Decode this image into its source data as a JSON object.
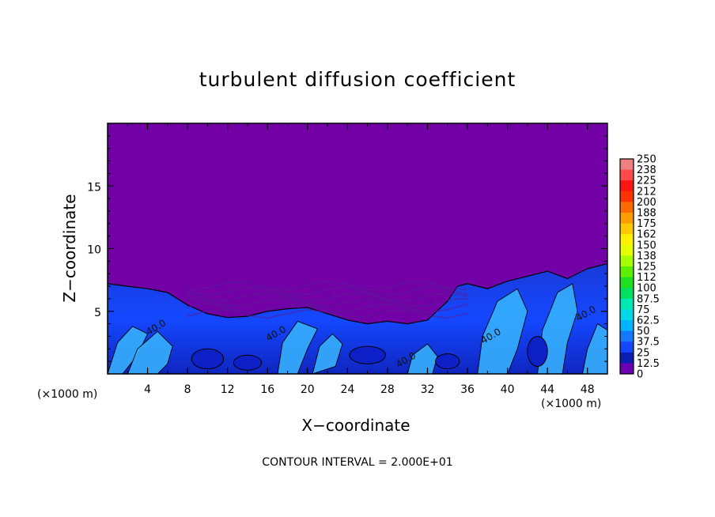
{
  "chart_data": {
    "type": "heatmap",
    "title": "turbulent diffusion coefficient",
    "xlabel": "X−coordinate",
    "ylabel": "Z−coordinate",
    "x_unit_label": "(×1000 m)",
    "x_ticks": [
      4,
      8,
      12,
      16,
      20,
      24,
      28,
      32,
      36,
      40,
      44,
      48
    ],
    "y_ticks": [
      5,
      10,
      15
    ],
    "xlim": [
      0,
      50
    ],
    "ylim": [
      0,
      20
    ],
    "footer": "CONTOUR INTERVAL = 2.000E+01",
    "contour_labels": [
      {
        "text": "40.0",
        "x": 5,
        "y": 3.5
      },
      {
        "text": "40.0",
        "x": 17,
        "y": 3.0
      },
      {
        "text": "40.0",
        "x": 30,
        "y": 0.9
      },
      {
        "text": "40.0",
        "x": 38.5,
        "y": 2.8
      },
      {
        "text": "40.0",
        "x": 48,
        "y": 4.6
      }
    ],
    "boundary_layer_top": [
      [
        0,
        7.2
      ],
      [
        2,
        7.0
      ],
      [
        4,
        6.8
      ],
      [
        6,
        6.5
      ],
      [
        8,
        5.5
      ],
      [
        10,
        4.8
      ],
      [
        12,
        4.5
      ],
      [
        14,
        4.6
      ],
      [
        16,
        5.0
      ],
      [
        18,
        5.2
      ],
      [
        20,
        5.3
      ],
      [
        22,
        4.8
      ],
      [
        24,
        4.3
      ],
      [
        26,
        4.0
      ],
      [
        28,
        4.2
      ],
      [
        30,
        4.0
      ],
      [
        32,
        4.3
      ],
      [
        34,
        5.8
      ],
      [
        35,
        7.0
      ],
      [
        36,
        7.2
      ],
      [
        38,
        6.8
      ],
      [
        40,
        7.4
      ],
      [
        42,
        7.8
      ],
      [
        44,
        8.2
      ],
      [
        46,
        7.6
      ],
      [
        48,
        8.4
      ],
      [
        50,
        8.8
      ]
    ],
    "colorbar": {
      "labels": [
        "250",
        "238",
        "225",
        "212",
        "200",
        "188",
        "175",
        "162",
        "150",
        "138",
        "125",
        "112",
        "100",
        "87.5",
        "75",
        "62.5",
        "50",
        "37.5",
        "25",
        "12.5",
        "0"
      ],
      "colors": [
        "#f08080",
        "#ff4a4a",
        "#ff1414",
        "#ff3300",
        "#ff6a00",
        "#ff9d00",
        "#ffc800",
        "#fff000",
        "#e6ff00",
        "#a6ff00",
        "#5cf000",
        "#1fe01f",
        "#00e060",
        "#00e8b4",
        "#00d8e8",
        "#00b4ff",
        "#1478ff",
        "#1446ff",
        "#0a1eb4",
        "#6a00b0"
      ]
    },
    "colors": {
      "background_field": "#7300a6",
      "turbulent_base": "#0d20c8",
      "turbulent_mid": "#1a4aff",
      "turbulent_high": "#38b6ff",
      "frame": "#000000"
    }
  }
}
